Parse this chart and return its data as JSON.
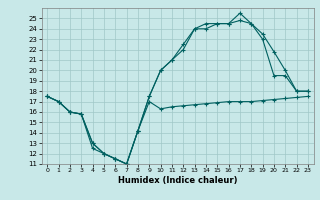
{
  "xlabel": "Humidex (Indice chaleur)",
  "bg_color": "#c8e8e8",
  "grid_color": "#a0c8c8",
  "line_color": "#006060",
  "xlim_min": -0.5,
  "xlim_max": 23.5,
  "ylim_min": 11,
  "ylim_max": 26,
  "x_ticks": [
    0,
    1,
    2,
    3,
    4,
    5,
    6,
    7,
    8,
    9,
    10,
    11,
    12,
    13,
    14,
    15,
    16,
    17,
    18,
    19,
    20,
    21,
    22,
    23
  ],
  "y_ticks": [
    11,
    12,
    13,
    14,
    15,
    16,
    17,
    18,
    19,
    20,
    21,
    22,
    23,
    24,
    25
  ],
  "line1_x": [
    0,
    1,
    2,
    3,
    4,
    5,
    6,
    7,
    8,
    9,
    10,
    11,
    12,
    13,
    14,
    15,
    16,
    17,
    18,
    19,
    20,
    21,
    22,
    23
  ],
  "line1_y": [
    17.5,
    17,
    16,
    15.8,
    12.5,
    12,
    11.5,
    11,
    14.2,
    17,
    16.3,
    16.5,
    16.6,
    16.7,
    16.8,
    16.9,
    17,
    17,
    17,
    17.1,
    17.2,
    17.3,
    17.4,
    17.5
  ],
  "line2_x": [
    0,
    1,
    2,
    3,
    4,
    5,
    6,
    7,
    8,
    9,
    10,
    11,
    12,
    13,
    14,
    15,
    16,
    17,
    18,
    19,
    20,
    21,
    22,
    23
  ],
  "line2_y": [
    17.5,
    17,
    16,
    15.8,
    13,
    12,
    11.5,
    11,
    14.2,
    17.5,
    20,
    21,
    22,
    24,
    24,
    24.5,
    24.5,
    25.5,
    24.5,
    23,
    19.5,
    19.5,
    18,
    18
  ],
  "line3_x": [
    0,
    1,
    2,
    3,
    4,
    5,
    6,
    7,
    8,
    9,
    10,
    11,
    12,
    13,
    14,
    15,
    16,
    17,
    18,
    19,
    20,
    21,
    22,
    23
  ],
  "line3_y": [
    17.5,
    17,
    16,
    15.8,
    13,
    12,
    11.5,
    11,
    14.2,
    17.5,
    20,
    21,
    22.5,
    24,
    24.5,
    24.5,
    24.5,
    24.8,
    24.5,
    23.5,
    21.8,
    20,
    18,
    18
  ],
  "xlabel_fontsize": 6,
  "tick_fontsize": 5,
  "linewidth": 0.8,
  "markersize": 3
}
